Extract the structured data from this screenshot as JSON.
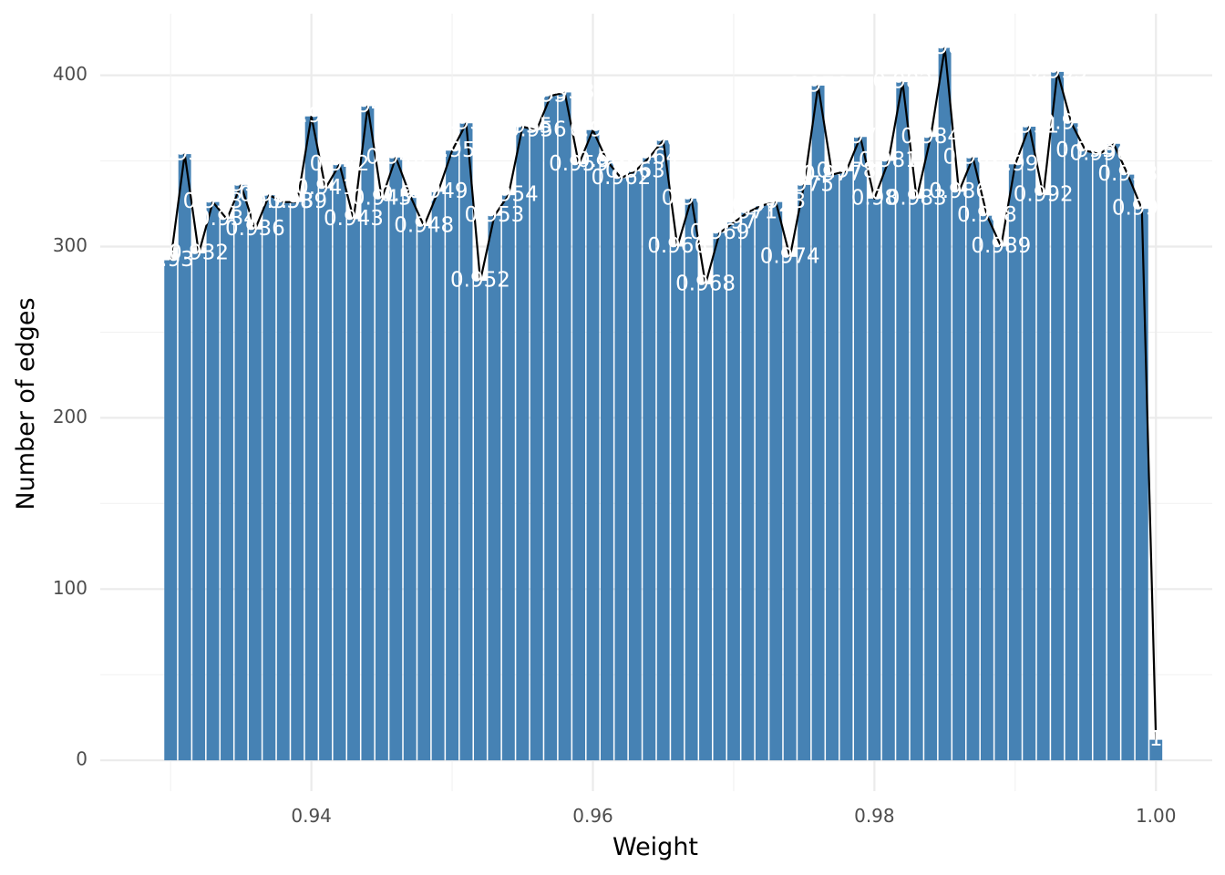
{
  "chart_data": {
    "type": "bar",
    "xlabel": "Weight",
    "ylabel": "Number of edges",
    "xlim": [
      0.925,
      1.004
    ],
    "ylim": [
      -18,
      436
    ],
    "x_ticks": [
      0.94,
      0.96,
      0.98,
      1.0
    ],
    "x_tick_labels": [
      "0.94",
      "0.96",
      "0.98",
      "1.00"
    ],
    "y_ticks": [
      0,
      100,
      200,
      300,
      400
    ],
    "y_tick_labels": [
      "0",
      "100",
      "200",
      "300",
      "400"
    ],
    "grid": true,
    "bar_color": "#4682B4",
    "line_color": "#000000",
    "label_color": "#ffffff",
    "overlay": "line connecting bar tops",
    "bin_width": 0.001,
    "x": [
      0.93,
      0.931,
      0.932,
      0.933,
      0.934,
      0.935,
      0.936,
      0.937,
      0.938,
      0.939,
      0.94,
      0.941,
      0.942,
      0.943,
      0.944,
      0.945,
      0.946,
      0.947,
      0.948,
      0.949,
      0.95,
      0.951,
      0.952,
      0.953,
      0.954,
      0.955,
      0.956,
      0.957,
      0.958,
      0.959,
      0.96,
      0.961,
      0.962,
      0.963,
      0.964,
      0.965,
      0.966,
      0.967,
      0.968,
      0.969,
      0.97,
      0.971,
      0.972,
      0.973,
      0.974,
      0.975,
      0.976,
      0.977,
      0.978,
      0.979,
      0.98,
      0.981,
      0.982,
      0.983,
      0.984,
      0.985,
      0.986,
      0.987,
      0.988,
      0.989,
      0.99,
      0.991,
      0.992,
      0.993,
      0.994,
      0.995,
      0.996,
      0.997,
      0.998,
      0.999,
      1.0
    ],
    "values": [
      292,
      354,
      296,
      326,
      316,
      336,
      310,
      330,
      326,
      326,
      376,
      334,
      348,
      316,
      382,
      328,
      352,
      330,
      312,
      332,
      356,
      372,
      280,
      318,
      330,
      370,
      368,
      388,
      390,
      348,
      368,
      350,
      340,
      344,
      352,
      362,
      300,
      328,
      278,
      308,
      314,
      320,
      324,
      326,
      294,
      336,
      394,
      342,
      344,
      364,
      328,
      350,
      396,
      328,
      364,
      416,
      332,
      352,
      318,
      300,
      348,
      370,
      330,
      402,
      372,
      356,
      354,
      360,
      342,
      322,
      12
    ],
    "labels": [
      "0.93",
      "0.931",
      "0.932",
      "0.933",
      "0.934",
      "0.935",
      "0.936",
      "0.937",
      "0.938",
      "0.939",
      "0.94",
      "0.941",
      "0.942",
      "0.943",
      "0.944",
      "0.945",
      "0.946",
      "0.947",
      "0.948",
      "0.949",
      "0.95",
      "0.951",
      "0.952",
      "0.953",
      "0.954",
      "0.955",
      "0.956",
      "0.957",
      "0.958",
      "0.959",
      "0.96",
      "0.961",
      "0.962",
      "0.963",
      "0.964",
      "0.965",
      "0.966",
      "0.967",
      "0.968",
      "0.969",
      "0.97",
      "0.971",
      "0.972",
      "0.973",
      "0.974",
      "0.975",
      "0.976",
      "0.977",
      "0.978",
      "0.979",
      "0.98",
      "0.981",
      "0.982",
      "0.983",
      "0.984",
      "0.985",
      "0.986",
      "0.987",
      "0.988",
      "0.989",
      "0.99",
      "0.991",
      "0.992",
      "0.993",
      "0.994",
      "0.995",
      "0.996",
      "0.997",
      "0.998",
      "0.999",
      "1"
    ]
  }
}
